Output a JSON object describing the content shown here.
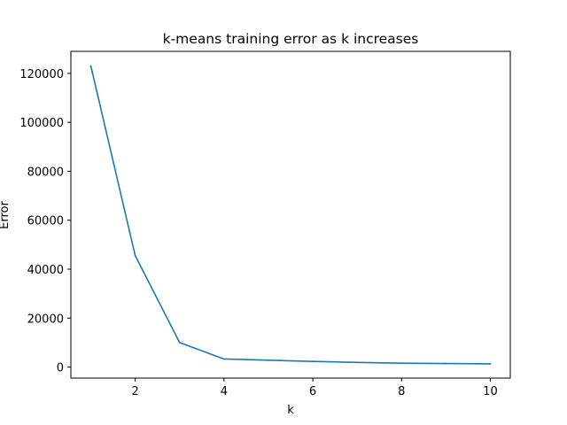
{
  "chart_data": {
    "type": "line",
    "title": "k-means training error as k increases",
    "xlabel": "k",
    "ylabel": "Error",
    "xlim": [
      0.55,
      10.45
    ],
    "ylim": [
      -4500,
      129000
    ],
    "xticks": [
      2,
      4,
      6,
      8,
      10
    ],
    "yticks": [
      0,
      20000,
      40000,
      60000,
      80000,
      100000,
      120000
    ],
    "grid": false,
    "colors": {
      "line": "#1f77b4",
      "axes": "#000000"
    },
    "series": [
      {
        "x": [
          1,
          2,
          3,
          4,
          5,
          6,
          7,
          8,
          9,
          10
        ],
        "values": [
          123000,
          45500,
          10000,
          3300,
          2800,
          2300,
          1900,
          1600,
          1450,
          1300
        ]
      }
    ]
  }
}
